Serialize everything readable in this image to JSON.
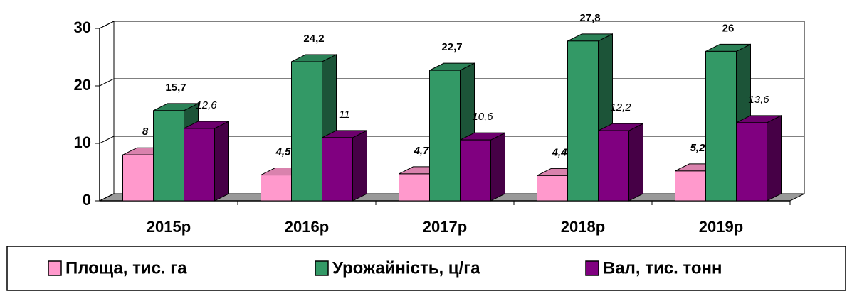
{
  "chart_data": {
    "type": "bar3d",
    "categories": [
      "2015р",
      "2016р",
      "2017р",
      "2018р",
      "2019р"
    ],
    "series": [
      {
        "name": "Площа, тис. га",
        "color": "#ff99cc",
        "values": [
          8,
          4.5,
          4.7,
          4.4,
          5.2
        ],
        "value_labels": [
          "8",
          "4,5",
          "4,7",
          "4,4",
          "5,2"
        ]
      },
      {
        "name": "Урожайність, ц/га",
        "color": "#339966",
        "values": [
          15.7,
          24.2,
          22.7,
          27.8,
          26
        ],
        "value_labels": [
          "15,7",
          "24,2",
          "22,7",
          "27,8",
          "26"
        ]
      },
      {
        "name": "Вал, тис. тонн",
        "color": "#800080",
        "values": [
          12.6,
          11,
          10.6,
          12.2,
          13.6
        ],
        "value_labels": [
          "12,6",
          "11",
          "10,6",
          "12,2",
          "13,6"
        ]
      }
    ],
    "ylim": [
      0,
      30
    ],
    "yticks": [
      0,
      10,
      20,
      30
    ],
    "grid": true
  }
}
